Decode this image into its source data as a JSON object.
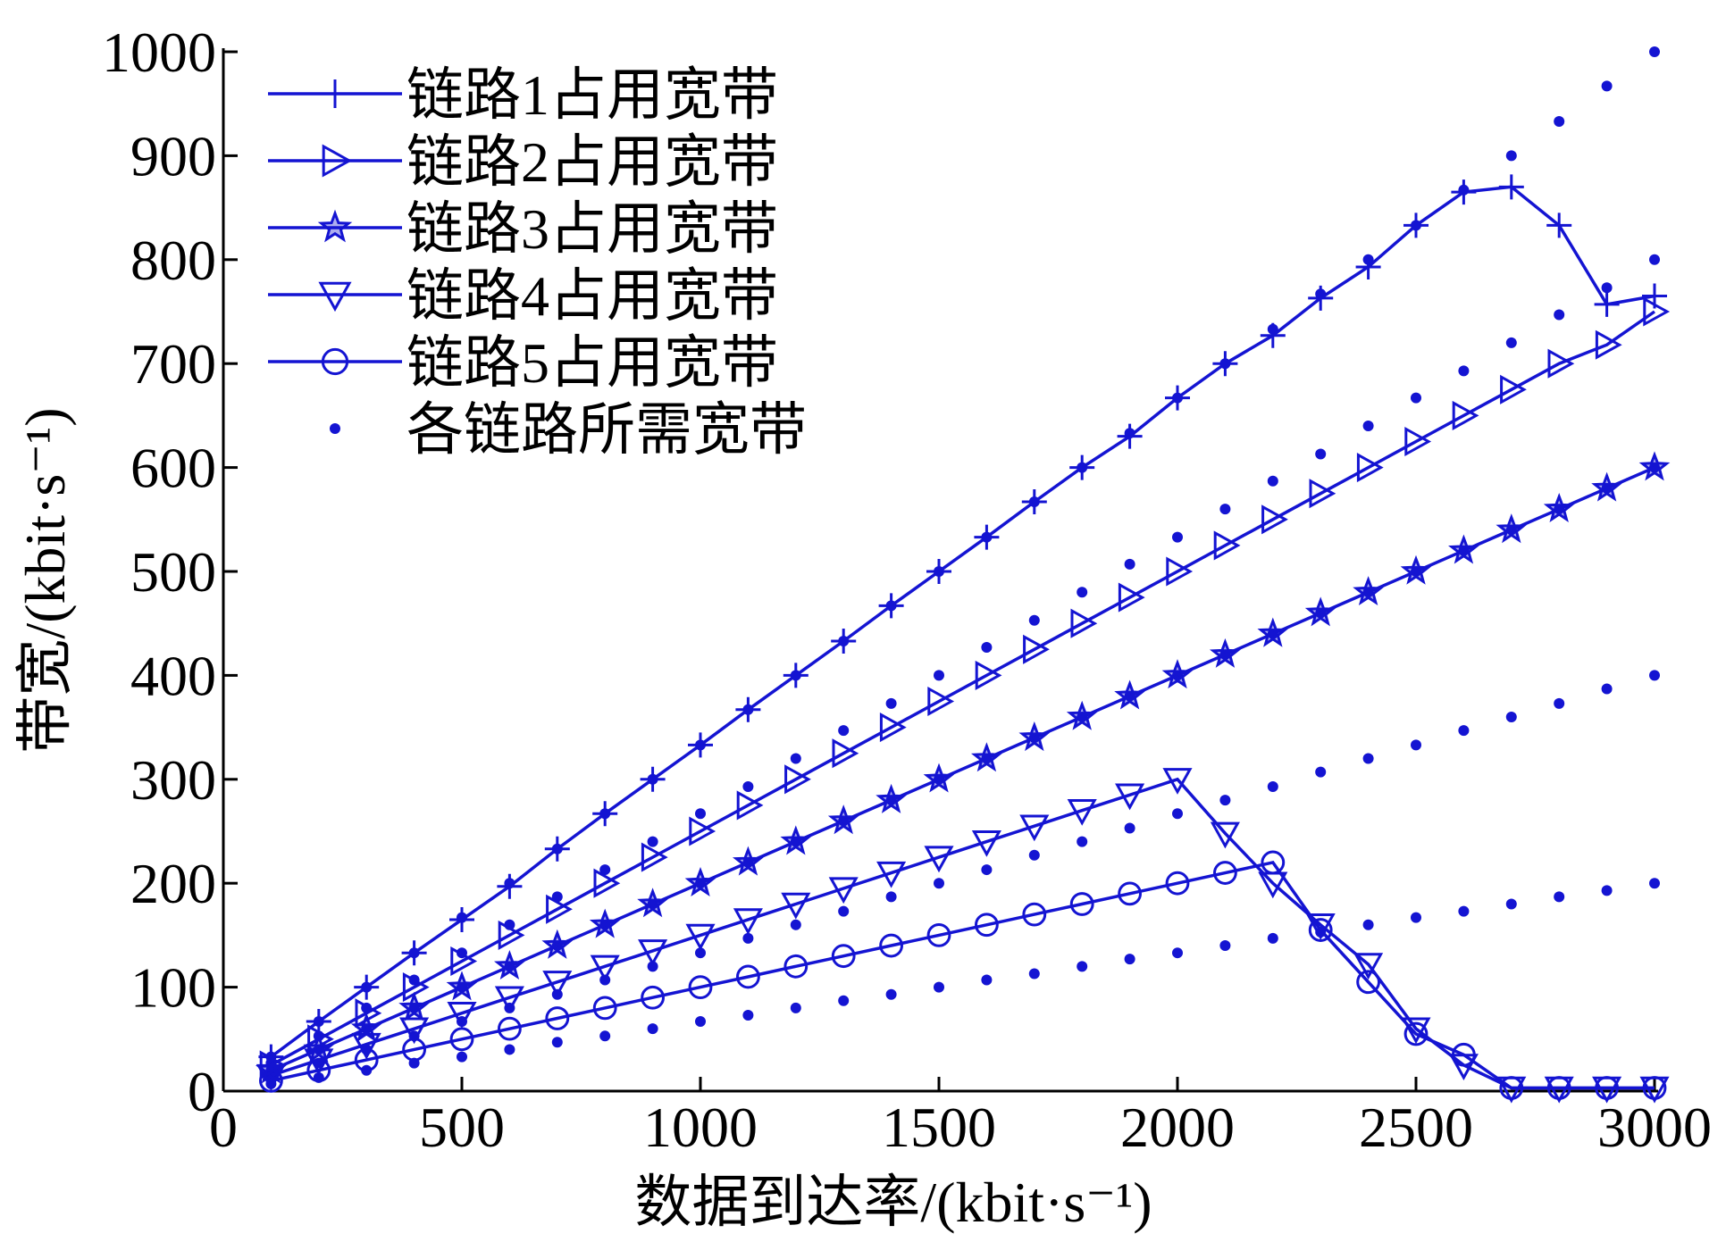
{
  "chart_data": {
    "type": "line",
    "xlabel": "数据到达率/(kbit·s⁻¹)",
    "ylabel": "带宽/(kbit·s⁻¹)",
    "xlim": [
      0,
      3000
    ],
    "ylim": [
      0,
      1000
    ],
    "xticks": [
      0,
      500,
      1000,
      1500,
      2000,
      2500,
      3000
    ],
    "yticks": [
      0,
      100,
      200,
      300,
      400,
      500,
      600,
      700,
      800,
      900,
      1000
    ],
    "grid": false,
    "legend_position": "top-left",
    "line_color": "#1414d2",
    "x": [
      100,
      200,
      300,
      400,
      500,
      600,
      700,
      800,
      900,
      1000,
      1100,
      1200,
      1300,
      1400,
      1500,
      1600,
      1700,
      1800,
      1900,
      2000,
      2100,
      2200,
      2300,
      2400,
      2500,
      2600,
      2700,
      2800,
      2900,
      3000
    ],
    "series": [
      {
        "name": "链路1占用宽带",
        "marker": "plus",
        "values": [
          33,
          67,
          100,
          133,
          165,
          197,
          233,
          267,
          300,
          333,
          367,
          400,
          433,
          467,
          500,
          533,
          567,
          600,
          630,
          667,
          700,
          727,
          763,
          793,
          833,
          865,
          870,
          833,
          757,
          765
        ]
      },
      {
        "name": "链路2占用宽带",
        "marker": "triangle-right",
        "values": [
          25,
          50,
          75,
          100,
          125,
          150,
          175,
          200,
          225,
          250,
          275,
          300,
          325,
          350,
          375,
          400,
          425,
          450,
          475,
          500,
          525,
          550,
          575,
          600,
          625,
          650,
          675,
          700,
          718,
          750
        ]
      },
      {
        "name": "链路3占用宽带",
        "marker": "star",
        "values": [
          20,
          40,
          60,
          80,
          100,
          120,
          140,
          160,
          180,
          200,
          220,
          240,
          260,
          280,
          300,
          320,
          340,
          360,
          380,
          400,
          420,
          440,
          460,
          480,
          500,
          520,
          540,
          560,
          580,
          600
        ]
      },
      {
        "name": "链路4占用宽带",
        "marker": "triangle-down",
        "values": [
          15,
          30,
          45,
          60,
          75,
          90,
          105,
          120,
          135,
          150,
          165,
          180,
          195,
          210,
          225,
          240,
          255,
          270,
          285,
          300,
          248,
          200,
          160,
          122,
          60,
          25,
          3,
          3,
          3,
          3
        ]
      },
      {
        "name": "链路5占用宽带",
        "marker": "circle",
        "values": [
          10,
          20,
          30,
          40,
          50,
          60,
          70,
          80,
          90,
          100,
          110,
          120,
          130,
          140,
          150,
          160,
          170,
          180,
          190,
          200,
          210,
          220,
          155,
          105,
          55,
          35,
          3,
          3,
          3,
          3
        ]
      }
    ],
    "required": {
      "name": "各链路所需宽带",
      "marker": "dot",
      "series": [
        [
          33,
          67,
          100,
          133,
          167,
          200,
          233,
          267,
          300,
          333,
          367,
          400,
          433,
          467,
          500,
          533,
          567,
          600,
          633,
          667,
          700,
          733,
          767,
          800,
          833,
          867,
          900,
          933,
          967,
          1000
        ],
        [
          27,
          53,
          80,
          107,
          133,
          160,
          187,
          213,
          240,
          267,
          293,
          320,
          347,
          373,
          400,
          427,
          453,
          480,
          507,
          533,
          560,
          587,
          613,
          640,
          667,
          693,
          720,
          747,
          773,
          800
        ],
        [
          20,
          40,
          60,
          80,
          100,
          120,
          140,
          160,
          180,
          200,
          220,
          240,
          260,
          280,
          300,
          320,
          340,
          360,
          380,
          400,
          420,
          440,
          460,
          480,
          500,
          520,
          540,
          560,
          580,
          600
        ],
        [
          13,
          27,
          40,
          53,
          67,
          80,
          93,
          107,
          120,
          133,
          147,
          160,
          173,
          187,
          200,
          213,
          227,
          240,
          253,
          267,
          280,
          293,
          307,
          320,
          333,
          347,
          360,
          373,
          387,
          400
        ],
        [
          7,
          13,
          20,
          27,
          33,
          40,
          47,
          53,
          60,
          67,
          73,
          80,
          87,
          93,
          100,
          107,
          113,
          120,
          127,
          133,
          140,
          147,
          153,
          160,
          167,
          173,
          180,
          187,
          193,
          200
        ]
      ]
    }
  }
}
